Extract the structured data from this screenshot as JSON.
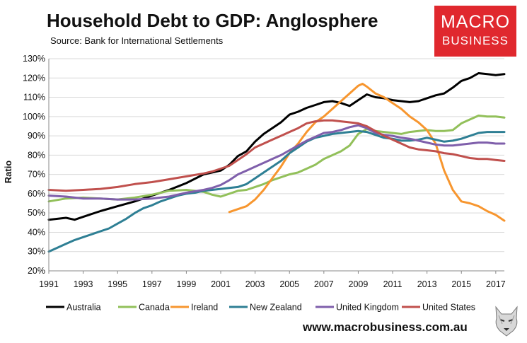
{
  "title": "Household Debt to GDP: Anglosphere",
  "subtitle": "Source: Bank for International Settlements",
  "logo": {
    "line1": "MACRO",
    "line2": "BUSINESS"
  },
  "website": "www.macrobusiness.com.au",
  "colors": {
    "Australia": "#000000",
    "Canada": "#92c05a",
    "Ireland": "#f7962f",
    "New Zealand": "#2e7f94",
    "United Kingdom": "#7f5fab",
    "United States": "#c0504d",
    "logo": "#e0282e"
  },
  "chart_data": {
    "type": "line",
    "title": "Household Debt to GDP: Anglosphere",
    "xlabel": "",
    "ylabel": "Ratio",
    "xlim": [
      1991,
      2017.5
    ],
    "ylim": [
      20,
      130
    ],
    "x_ticks": [
      "1991",
      "1993",
      "1995",
      "1997",
      "1999",
      "2001",
      "2003",
      "2005",
      "2007",
      "2009",
      "2011",
      "2013",
      "2015",
      "2017"
    ],
    "y_ticks": [
      "20%",
      "30%",
      "40%",
      "50%",
      "60%",
      "70%",
      "80%",
      "90%",
      "100%",
      "110%",
      "120%",
      "130%"
    ],
    "grid": "horizontal",
    "legend": "bottom",
    "series": [
      {
        "name": "Australia",
        "x": [
          1991,
          1992,
          1992.5,
          1993,
          1994,
          1995,
          1996,
          1997,
          1998,
          1999,
          2000,
          2000.5,
          2001,
          2001.5,
          2002,
          2002.5,
          2003,
          2003.5,
          2004,
          2004.5,
          2005,
          2005.5,
          2006,
          2006.5,
          2007,
          2007.5,
          2008,
          2008.5,
          2009,
          2009.5,
          2010,
          2010.5,
          2011,
          2011.5,
          2012,
          2012.5,
          2013,
          2013.5,
          2014,
          2014.5,
          2015,
          2015.5,
          2016,
          2016.5,
          2017,
          2017.5
        ],
        "y": [
          46.5,
          47.5,
          46.5,
          48,
          51,
          53.5,
          56,
          59,
          62,
          65.5,
          70,
          71,
          72,
          75,
          79.5,
          82,
          87,
          91,
          94,
          97,
          101,
          102.5,
          104.5,
          106,
          107.5,
          108,
          107,
          105.5,
          108.5,
          111.5,
          110,
          109.5,
          108.5,
          108,
          107.5,
          108,
          109.5,
          111,
          112,
          115,
          118.5,
          120,
          122.5,
          122,
          121.5,
          122
        ]
      },
      {
        "name": "Canada",
        "x": [
          1991,
          1992,
          1993,
          1994,
          1995,
          1996,
          1997,
          1998,
          1999,
          2000,
          2000.5,
          2001,
          2001.5,
          2002,
          2002.5,
          2003,
          2003.5,
          2004,
          2004.5,
          2005,
          2005.5,
          2006,
          2006.5,
          2007,
          2007.5,
          2008,
          2008.5,
          2009,
          2009.5,
          2010,
          2010.5,
          2011,
          2011.5,
          2012,
          2012.5,
          2013,
          2013.5,
          2014,
          2014.5,
          2015,
          2015.5,
          2016,
          2016.5,
          2017,
          2017.5
        ],
        "y": [
          56,
          57.5,
          58,
          57.5,
          57,
          58,
          59.5,
          61.5,
          62,
          61,
          59.5,
          58.5,
          60,
          61.5,
          62,
          63.5,
          65,
          67,
          68.5,
          70,
          71,
          73,
          75,
          78,
          80,
          82,
          85,
          91,
          93.5,
          92.5,
          92,
          91.5,
          91,
          92,
          92.5,
          93,
          92.5,
          92.5,
          93,
          96.5,
          98.5,
          100.5,
          100,
          100,
          99.5
        ]
      },
      {
        "name": "Ireland",
        "x": [
          2001.5,
          2002,
          2002.5,
          2003,
          2003.5,
          2004,
          2004.5,
          2005,
          2005.5,
          2006,
          2006.5,
          2007,
          2007.5,
          2008,
          2008.5,
          2009,
          2009.25,
          2009.5,
          2010,
          2010.5,
          2011,
          2011.5,
          2012,
          2012.5,
          2013,
          2013.5,
          2014,
          2014.5,
          2015,
          2015.5,
          2016,
          2016.5,
          2017,
          2017.5
        ],
        "y": [
          50.5,
          52,
          53.5,
          57,
          62,
          68,
          74,
          81,
          86,
          92,
          97,
          100,
          104,
          108,
          112,
          116,
          117,
          115.5,
          112,
          110,
          107,
          104,
          100,
          97,
          93,
          86,
          72,
          62,
          56,
          55,
          53.5,
          51,
          49,
          46
        ]
      },
      {
        "name": "New Zealand",
        "x": [
          1991,
          1991.5,
          1992,
          1992.5,
          1993,
          1993.5,
          1994,
          1994.5,
          1995,
          1995.5,
          1996,
          1996.5,
          1997,
          1997.5,
          1998,
          1998.5,
          1999,
          1999.5,
          2000,
          2000.5,
          2001,
          2001.5,
          2002,
          2002.5,
          2003,
          2003.5,
          2004,
          2004.5,
          2005,
          2005.5,
          2006,
          2006.5,
          2007,
          2007.5,
          2008,
          2008.5,
          2009,
          2009.5,
          2010,
          2010.5,
          2011,
          2011.5,
          2012,
          2012.5,
          2013,
          2013.5,
          2014,
          2014.5,
          2015,
          2015.5,
          2016,
          2016.5,
          2017,
          2017.5
        ],
        "y": [
          30,
          32,
          34,
          36,
          37.5,
          39,
          40.5,
          42,
          44.5,
          47,
          50,
          52.5,
          54,
          56,
          57.5,
          59,
          60,
          60.5,
          61.5,
          62,
          62.5,
          63,
          63.5,
          65,
          68,
          71,
          74,
          77,
          81,
          84,
          87,
          89,
          90,
          91,
          91.5,
          92,
          92.5,
          92,
          90.5,
          89,
          88.5,
          87.5,
          87.5,
          88,
          89,
          88,
          87,
          87.5,
          88.5,
          90,
          91.5,
          92,
          92,
          92
        ]
      },
      {
        "name": "United Kingdom",
        "x": [
          1991,
          1992,
          1993,
          1994,
          1995,
          1996,
          1997,
          1998,
          1999,
          2000,
          2000.5,
          2001,
          2001.5,
          2002,
          2002.5,
          2003,
          2003.5,
          2004,
          2004.5,
          2005,
          2005.5,
          2006,
          2006.5,
          2007,
          2007.5,
          2008,
          2008.5,
          2009,
          2009.5,
          2010,
          2010.5,
          2011,
          2011.5,
          2012,
          2012.5,
          2013,
          2013.5,
          2014,
          2014.5,
          2015,
          2015.5,
          2016,
          2016.5,
          2017,
          2017.5
        ],
        "y": [
          59,
          58.5,
          57.5,
          57.5,
          57,
          57,
          57.5,
          58.5,
          60.5,
          62,
          63,
          64.5,
          67,
          70,
          72,
          74,
          76,
          78,
          80,
          82.5,
          85,
          87.5,
          89.5,
          91.5,
          92,
          93,
          94.5,
          95.5,
          94,
          91.5,
          90.5,
          90,
          89,
          88.5,
          87.5,
          86.5,
          85.5,
          85,
          85,
          85.5,
          86,
          86.5,
          86.5,
          86,
          86
        ]
      },
      {
        "name": "United States",
        "x": [
          1991,
          1992,
          1993,
          1994,
          1995,
          1996,
          1997,
          1998,
          1999,
          2000,
          2000.5,
          2001,
          2001.5,
          2002,
          2002.5,
          2003,
          2003.5,
          2004,
          2004.5,
          2005,
          2005.5,
          2006,
          2006.5,
          2007,
          2007.5,
          2008,
          2008.5,
          2009,
          2009.5,
          2010,
          2010.5,
          2011,
          2011.5,
          2012,
          2012.5,
          2013,
          2013.5,
          2014,
          2014.5,
          2015,
          2015.5,
          2016,
          2016.5,
          2017,
          2017.5
        ],
        "y": [
          62,
          61.5,
          62,
          62.5,
          63.5,
          65,
          66,
          67.5,
          69,
          70.5,
          71.5,
          73,
          74.5,
          77.5,
          80.5,
          84,
          86,
          88,
          90,
          92,
          94,
          96.5,
          97.5,
          98,
          98,
          97.5,
          97,
          96.5,
          95,
          92.5,
          90,
          88,
          86,
          84,
          83,
          82.5,
          82,
          81,
          80.5,
          79.5,
          78.5,
          78,
          78,
          77.5,
          77
        ]
      }
    ]
  }
}
